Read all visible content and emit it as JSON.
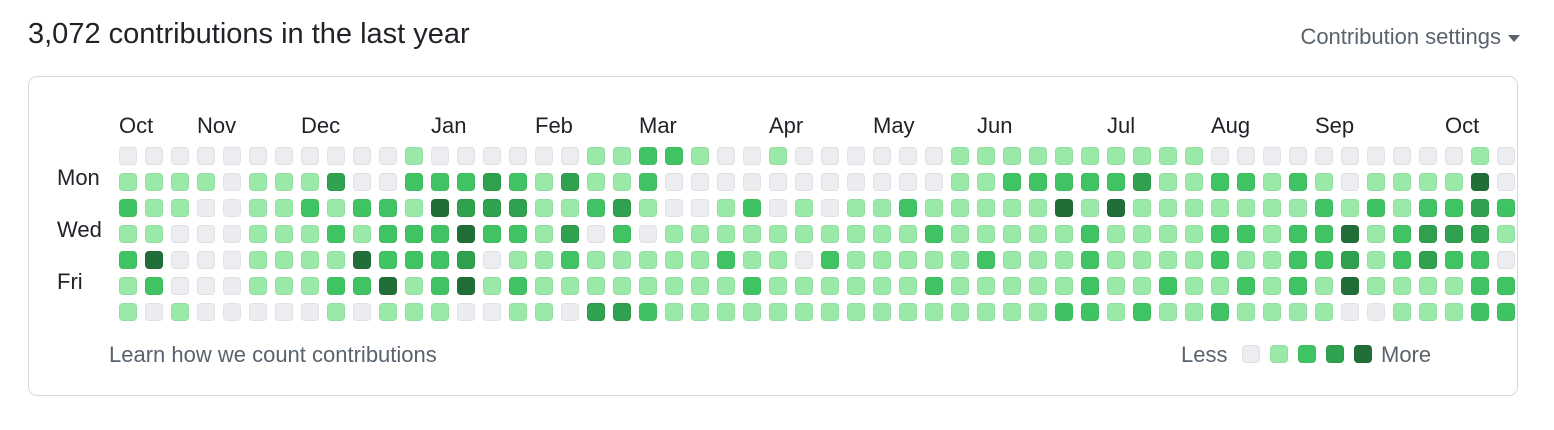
{
  "header": {
    "title": "3,072 contributions in the last year",
    "settings_label": "Contribution settings",
    "settings_icon": "caret-down-icon"
  },
  "months": [
    {
      "label": "Oct",
      "week": 0
    },
    {
      "label": "Nov",
      "week": 3
    },
    {
      "label": "Dec",
      "week": 7
    },
    {
      "label": "Jan",
      "week": 12
    },
    {
      "label": "Feb",
      "week": 16
    },
    {
      "label": "Mar",
      "week": 20
    },
    {
      "label": "Apr",
      "week": 25
    },
    {
      "label": "May",
      "week": 29
    },
    {
      "label": "Jun",
      "week": 33
    },
    {
      "label": "Jul",
      "week": 38
    },
    {
      "label": "Aug",
      "week": 42
    },
    {
      "label": "Sep",
      "week": 46
    },
    {
      "label": "Oct",
      "week": 51
    }
  ],
  "days": [
    {
      "label": "Mon",
      "row": 1
    },
    {
      "label": "Wed",
      "row": 3
    },
    {
      "label": "Fri",
      "row": 5
    }
  ],
  "colors": [
    "#ebedf0",
    "#9be9a8",
    "#40c463",
    "#30a14e",
    "#216e39"
  ],
  "contributions": [
    [
      0,
      0,
      0,
      0,
      0,
      0,
      0,
      0,
      0,
      0,
      0,
      1,
      0,
      0,
      0,
      0,
      0,
      0,
      1,
      1,
      2,
      2,
      1,
      0,
      0,
      1,
      0,
      0,
      0,
      0,
      0,
      0,
      1,
      1,
      1,
      1,
      1,
      1,
      1,
      1,
      1,
      1,
      0,
      0,
      0,
      0,
      0,
      0,
      0,
      0,
      0,
      0,
      1,
      0
    ],
    [
      1,
      1,
      1,
      1,
      0,
      1,
      1,
      1,
      3,
      0,
      0,
      2,
      2,
      2,
      3,
      2,
      1,
      3,
      1,
      1,
      2,
      0,
      0,
      0,
      0,
      0,
      0,
      0,
      0,
      0,
      0,
      0,
      1,
      1,
      2,
      2,
      2,
      2,
      2,
      3,
      1,
      1,
      2,
      2,
      1,
      2,
      1,
      0,
      1,
      1,
      1,
      1,
      4,
      0
    ],
    [
      2,
      1,
      1,
      0,
      0,
      1,
      1,
      2,
      1,
      2,
      2,
      1,
      4,
      3,
      3,
      3,
      1,
      1,
      2,
      3,
      1,
      0,
      0,
      1,
      2,
      0,
      1,
      0,
      1,
      1,
      2,
      1,
      1,
      1,
      1,
      1,
      4,
      1,
      4,
      1,
      1,
      1,
      1,
      1,
      1,
      1,
      2,
      1,
      2,
      1,
      2,
      2,
      3,
      2
    ],
    [
      1,
      1,
      0,
      0,
      0,
      1,
      1,
      1,
      2,
      1,
      2,
      2,
      2,
      4,
      2,
      2,
      1,
      3,
      0,
      2,
      0,
      1,
      1,
      1,
      1,
      1,
      1,
      1,
      1,
      1,
      1,
      2,
      1,
      1,
      1,
      1,
      1,
      2,
      1,
      1,
      1,
      1,
      2,
      2,
      1,
      2,
      2,
      4,
      1,
      2,
      3,
      3,
      3,
      1
    ],
    [
      2,
      4,
      0,
      0,
      0,
      1,
      1,
      1,
      1,
      4,
      2,
      2,
      2,
      3,
      0,
      1,
      1,
      2,
      1,
      1,
      1,
      1,
      1,
      2,
      1,
      1,
      0,
      2,
      1,
      1,
      1,
      1,
      1,
      2,
      1,
      1,
      1,
      2,
      1,
      1,
      1,
      1,
      2,
      1,
      1,
      2,
      2,
      3,
      1,
      2,
      3,
      2,
      2,
      0
    ],
    [
      1,
      2,
      0,
      0,
      0,
      1,
      1,
      1,
      2,
      2,
      4,
      1,
      2,
      4,
      1,
      2,
      1,
      1,
      1,
      1,
      1,
      1,
      1,
      1,
      2,
      1,
      1,
      1,
      1,
      1,
      1,
      2,
      1,
      1,
      1,
      1,
      1,
      2,
      1,
      1,
      2,
      1,
      1,
      2,
      1,
      2,
      1,
      4,
      1,
      1,
      1,
      1,
      2,
      2
    ],
    [
      1,
      0,
      1,
      0,
      0,
      0,
      0,
      0,
      1,
      0,
      1,
      1,
      1,
      0,
      0,
      1,
      1,
      0,
      3,
      3,
      2,
      1,
      1,
      1,
      1,
      1,
      1,
      1,
      1,
      1,
      1,
      1,
      1,
      1,
      1,
      1,
      2,
      2,
      1,
      2,
      1,
      1,
      2,
      1,
      1,
      1,
      1,
      0,
      0,
      1,
      1,
      1,
      2,
      2
    ]
  ],
  "footer": {
    "learn_link": "Learn how we count contributions",
    "legend_less": "Less",
    "legend_more": "More"
  }
}
